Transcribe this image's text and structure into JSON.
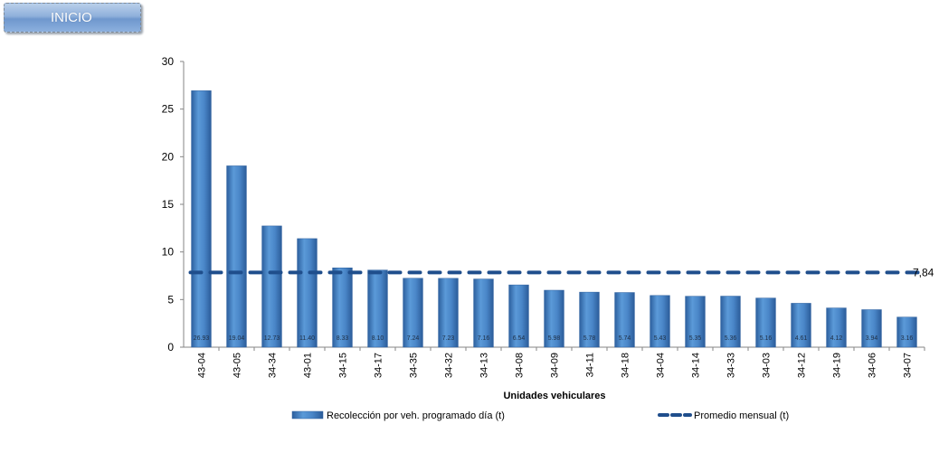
{
  "button": {
    "label": "INICIO"
  },
  "colors": {
    "bar": "#4a86c8",
    "bar_dark": "#2c5f9e",
    "avg_line": "#1f4e8c"
  },
  "chart_data": {
    "type": "bar",
    "title": "",
    "xlabel": "Unidades vehiculares",
    "ylabel": "",
    "ylim": [
      0,
      30
    ],
    "yticks": [
      0,
      5,
      10,
      15,
      20,
      25,
      30
    ],
    "categories": [
      "43-04",
      "43-05",
      "34-34",
      "43-01",
      "34-15",
      "34-17",
      "34-35",
      "34-32",
      "34-13",
      "34-08",
      "34-09",
      "34-11",
      "34-18",
      "34-04",
      "34-14",
      "34-33",
      "34-03",
      "34-12",
      "34-19",
      "34-06",
      "34-07"
    ],
    "series": [
      {
        "name": "Recolección por veh. programado día (t)",
        "values": [
          26.93,
          19.04,
          12.73,
          11.4,
          8.33,
          8.1,
          7.24,
          7.23,
          7.16,
          6.54,
          5.98,
          5.78,
          5.74,
          5.43,
          5.35,
          5.36,
          5.16,
          4.61,
          4.12,
          3.94,
          3.16
        ],
        "data_labels": [
          "26.93",
          "19.04",
          "12.73",
          "11.40",
          "8.33",
          "8.10",
          "7.24",
          "7.23",
          "7.16",
          "6.54",
          "5.98",
          "5.78",
          "5.74",
          "5.43",
          "5.35",
          "5.36",
          "5.16",
          "4.61",
          "4.12",
          "3.94",
          "3.16"
        ]
      },
      {
        "name": "Promedio mensual (t)",
        "type": "line",
        "value": 7.84,
        "value_label": "7,84"
      }
    ],
    "grid": false,
    "legend_position": "bottom"
  }
}
